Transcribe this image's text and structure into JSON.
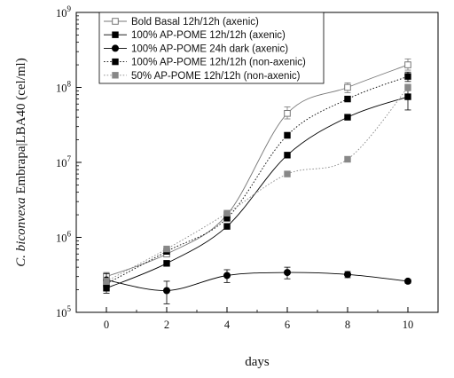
{
  "chart_data": {
    "type": "scatter",
    "xlabel": "days",
    "ylabel_italic": "C. biconvexa",
    "ylabel_rest": " Embrapa|LBA40  (cel/ml)",
    "y_scale": "log",
    "xlim": [
      -1,
      11
    ],
    "ylim": [
      100000,
      1000000000
    ],
    "x_ticks": [
      0,
      2,
      4,
      6,
      8,
      10
    ],
    "x_tick_labels": [
      "0",
      "2",
      "4",
      "6",
      "8",
      "10"
    ],
    "y_tick_base": "10",
    "y_tick_exponents": [
      "5",
      "6",
      "7",
      "8",
      "9"
    ],
    "grid": false,
    "legend_position": "top-left",
    "series": [
      {
        "name": "Bold Basal 12h/12h (axenic)",
        "marker": "open-square",
        "color": "#777777",
        "line_style": "solid",
        "x": [
          0,
          2,
          4,
          6,
          8,
          10
        ],
        "y": [
          300000,
          600000,
          2000000,
          45000000,
          100000000,
          200000000
        ],
        "err_low": [
          250000,
          560000,
          1800000,
          38000000,
          85000000,
          170000000
        ],
        "err_high": [
          340000,
          640000,
          2200000,
          55000000,
          115000000,
          240000000
        ]
      },
      {
        "name": "100% AP-POME 12h/12h (axenic)",
        "marker": "filled-square",
        "color": "#000000",
        "line_style": "solid",
        "x": [
          0,
          2,
          4,
          6,
          8,
          10
        ],
        "y": [
          210000,
          450000,
          1400000,
          12500000,
          40000000,
          75000000
        ],
        "err_low": [
          180000,
          420000,
          1300000,
          11500000,
          37000000,
          50000000
        ],
        "err_high": [
          240000,
          480000,
          1500000,
          13500000,
          43000000,
          95000000
        ]
      },
      {
        "name": "100% AP-POME 24h dark (axenic)",
        "marker": "filled-circle",
        "color": "#000000",
        "line_style": "solid",
        "x": [
          0,
          2,
          4,
          6,
          8,
          10
        ],
        "y": [
          270000,
          195000,
          310000,
          340000,
          320000,
          260000
        ],
        "err_low": [
          210000,
          130000,
          250000,
          280000,
          290000,
          245000
        ],
        "err_high": [
          330000,
          260000,
          370000,
          400000,
          350000,
          275000
        ]
      },
      {
        "name": "100% AP-POME 12h/12h (non-axenic)",
        "marker": "filled-square",
        "color": "#000000",
        "line_style": "dotted",
        "x": [
          0,
          2,
          4,
          6,
          8,
          10
        ],
        "y": [
          240000,
          650000,
          1800000,
          23000000,
          70000000,
          140000000
        ],
        "err_low": [
          215000,
          610000,
          1700000,
          21000000,
          65000000,
          120000000
        ],
        "err_high": [
          265000,
          690000,
          1900000,
          25000000,
          75000000,
          160000000
        ]
      },
      {
        "name": "50% AP-POME 12h/12h (non-axenic)",
        "marker": "filled-square",
        "color": "#888888",
        "line_style": "dotted",
        "x": [
          0,
          2,
          4,
          6,
          8,
          10
        ],
        "y": [
          260000,
          700000,
          2100000,
          7000000,
          11000000,
          100000000
        ],
        "err_low": [
          235000,
          660000,
          2000000,
          6500000,
          10300000,
          90000000
        ],
        "err_high": [
          285000,
          740000,
          2200000,
          7500000,
          11700000,
          110000000
        ]
      }
    ]
  }
}
